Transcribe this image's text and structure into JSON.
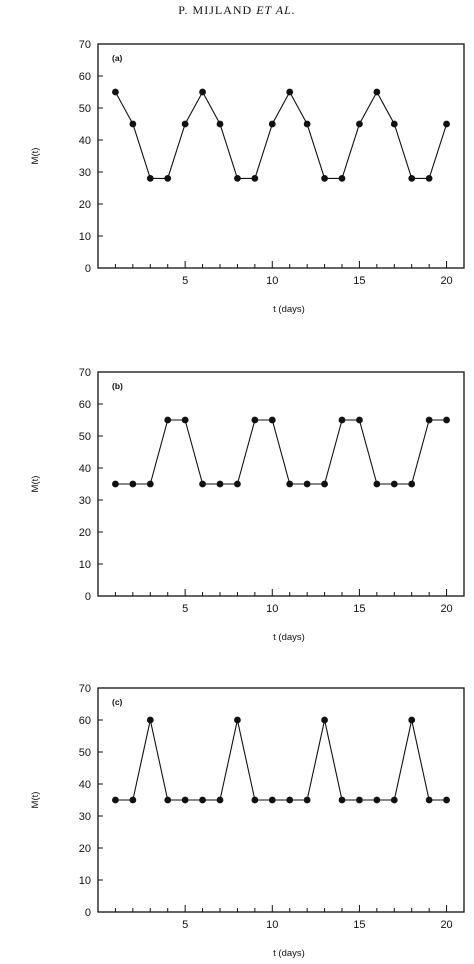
{
  "header": {
    "authors": "P. MIJLAND",
    "suffix": "ET AL."
  },
  "chart_data": [
    {
      "type": "line",
      "panel_label": "(a)",
      "xlabel": "t (days)",
      "ylabel": "M(t)",
      "xlim": [
        0,
        21
      ],
      "ylim": [
        0,
        70
      ],
      "xticks": [
        5,
        10,
        15,
        20
      ],
      "yticks": [
        0,
        10,
        20,
        30,
        40,
        50,
        60,
        70
      ],
      "x": [
        1,
        2,
        3,
        4,
        5,
        6,
        7,
        8,
        9,
        10,
        11,
        12,
        13,
        14,
        15,
        16,
        17,
        18,
        19,
        20
      ],
      "series": [
        {
          "values": [
            55,
            45,
            28,
            28,
            45,
            55,
            45,
            28,
            28,
            45,
            55,
            45,
            28,
            28,
            45,
            55,
            45,
            28,
            28,
            45
          ]
        }
      ],
      "grid": false
    },
    {
      "type": "line",
      "panel_label": "(b)",
      "xlabel": "t (days)",
      "ylabel": "M(t)",
      "xlim": [
        0,
        21
      ],
      "ylim": [
        0,
        70
      ],
      "xticks": [
        5,
        10,
        15,
        20
      ],
      "yticks": [
        0,
        10,
        20,
        30,
        40,
        50,
        60,
        70
      ],
      "x": [
        1,
        2,
        3,
        4,
        5,
        6,
        7,
        8,
        9,
        10,
        11,
        12,
        13,
        14,
        15,
        16,
        17,
        18,
        19,
        20
      ],
      "series": [
        {
          "values": [
            35,
            35,
            35,
            55,
            55,
            35,
            35,
            35,
            55,
            55,
            35,
            35,
            35,
            55,
            55,
            35,
            35,
            35,
            55,
            55
          ]
        }
      ],
      "grid": false
    },
    {
      "type": "line",
      "panel_label": "(c)",
      "xlabel": "t (days)",
      "ylabel": "M(t)",
      "xlim": [
        0,
        21
      ],
      "ylim": [
        0,
        70
      ],
      "xticks": [
        5,
        10,
        15,
        20
      ],
      "yticks": [
        0,
        10,
        20,
        30,
        40,
        50,
        60,
        70
      ],
      "x": [
        1,
        2,
        3,
        4,
        5,
        6,
        7,
        8,
        9,
        10,
        11,
        12,
        13,
        14,
        15,
        16,
        17,
        18,
        19,
        20
      ],
      "series": [
        {
          "values": [
            35,
            35,
            60,
            35,
            35,
            35,
            35,
            60,
            35,
            35,
            35,
            35,
            60,
            35,
            35,
            35,
            35,
            60,
            35,
            35
          ]
        }
      ],
      "grid": false
    }
  ]
}
